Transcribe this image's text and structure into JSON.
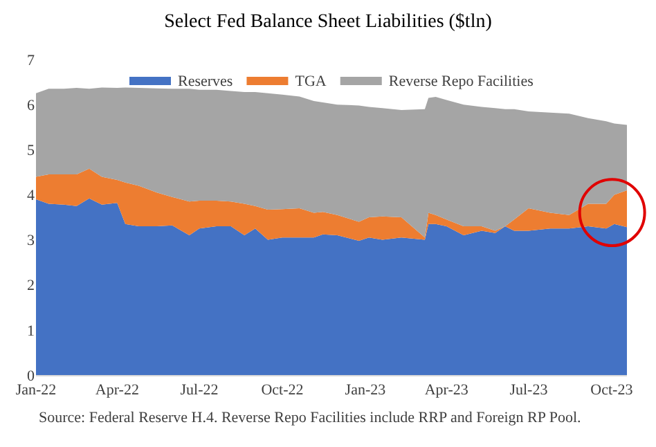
{
  "chart_data": {
    "type": "area",
    "stacked": true,
    "title": "Select Fed Balance Sheet Liabilities ($tln)",
    "x": [
      "2022-01-01",
      "2022-01-15",
      "2022-02-01",
      "2022-02-15",
      "2022-03-01",
      "2022-03-15",
      "2022-04-01",
      "2022-04-10",
      "2022-04-25",
      "2022-05-15",
      "2022-06-01",
      "2022-06-20",
      "2022-07-01",
      "2022-07-20",
      "2022-08-05",
      "2022-08-20",
      "2022-09-01",
      "2022-09-15",
      "2022-10-01",
      "2022-10-20",
      "2022-11-05",
      "2022-11-15",
      "2022-12-01",
      "2022-12-25",
      "2023-01-05",
      "2023-01-20",
      "2023-02-10",
      "2023-03-08",
      "2023-03-12",
      "2023-03-20",
      "2023-04-01",
      "2023-04-20",
      "2023-05-10",
      "2023-05-25",
      "2023-06-05",
      "2023-06-15",
      "2023-07-01",
      "2023-07-25",
      "2023-08-15",
      "2023-09-05",
      "2023-09-25",
      "2023-10-04",
      "2023-10-18"
    ],
    "series": [
      {
        "name": "Reserves",
        "color": "#4472c4",
        "values": [
          3.9,
          3.8,
          3.78,
          3.75,
          3.92,
          3.78,
          3.82,
          3.35,
          3.3,
          3.3,
          3.32,
          3.1,
          3.25,
          3.3,
          3.3,
          3.1,
          3.25,
          3.0,
          3.05,
          3.05,
          3.05,
          3.12,
          3.1,
          2.98,
          3.05,
          3.0,
          3.05,
          3.0,
          3.35,
          3.35,
          3.3,
          3.1,
          3.2,
          3.15,
          3.3,
          3.2,
          3.2,
          3.25,
          3.25,
          3.3,
          3.25,
          3.35,
          3.28
        ]
      },
      {
        "name": "TGA",
        "color": "#ed7d31",
        "values": [
          0.5,
          0.65,
          0.67,
          0.7,
          0.66,
          0.62,
          0.51,
          0.92,
          0.9,
          0.75,
          0.63,
          0.75,
          0.62,
          0.57,
          0.55,
          0.7,
          0.5,
          0.67,
          0.63,
          0.65,
          0.55,
          0.5,
          0.45,
          0.42,
          0.45,
          0.52,
          0.45,
          0.05,
          0.25,
          0.2,
          0.15,
          0.2,
          0.1,
          0.05,
          0.0,
          0.25,
          0.5,
          0.35,
          0.3,
          0.5,
          0.55,
          0.65,
          0.82
        ]
      },
      {
        "name": "Reverse Repo Facilities",
        "color": "#a5a5a5",
        "values": [
          1.85,
          1.9,
          1.9,
          1.92,
          1.77,
          1.98,
          2.04,
          2.11,
          2.17,
          2.31,
          2.4,
          2.5,
          2.46,
          2.46,
          2.45,
          2.48,
          2.53,
          2.58,
          2.54,
          2.48,
          2.48,
          2.43,
          2.45,
          2.58,
          2.45,
          2.4,
          2.38,
          2.85,
          2.55,
          2.62,
          2.65,
          2.7,
          2.65,
          2.72,
          2.6,
          2.45,
          2.15,
          2.22,
          2.25,
          1.9,
          1.83,
          1.58,
          1.45
        ]
      }
    ],
    "xlim": [
      "2022-01-01",
      "2023-10-18"
    ],
    "xticks": [
      {
        "value": "2022-01-01",
        "label": "Jan-22"
      },
      {
        "value": "2022-04-01",
        "label": "Apr-22"
      },
      {
        "value": "2022-07-01",
        "label": "Jul-22"
      },
      {
        "value": "2022-10-01",
        "label": "Oct-22"
      },
      {
        "value": "2023-01-01",
        "label": "Jan-23"
      },
      {
        "value": "2023-04-01",
        "label": "Apr-23"
      },
      {
        "value": "2023-07-01",
        "label": "Jul-23"
      },
      {
        "value": "2023-10-01",
        "label": "Oct-23"
      }
    ],
    "ylim": [
      0,
      7
    ],
    "yticks": [
      0,
      1,
      2,
      3,
      4,
      5,
      6,
      7
    ],
    "legend": "top",
    "annotations": [
      "Source: Federal Reserve H.4. Reverse Repo Facilities include RRP and Foreign RP Pool."
    ]
  }
}
